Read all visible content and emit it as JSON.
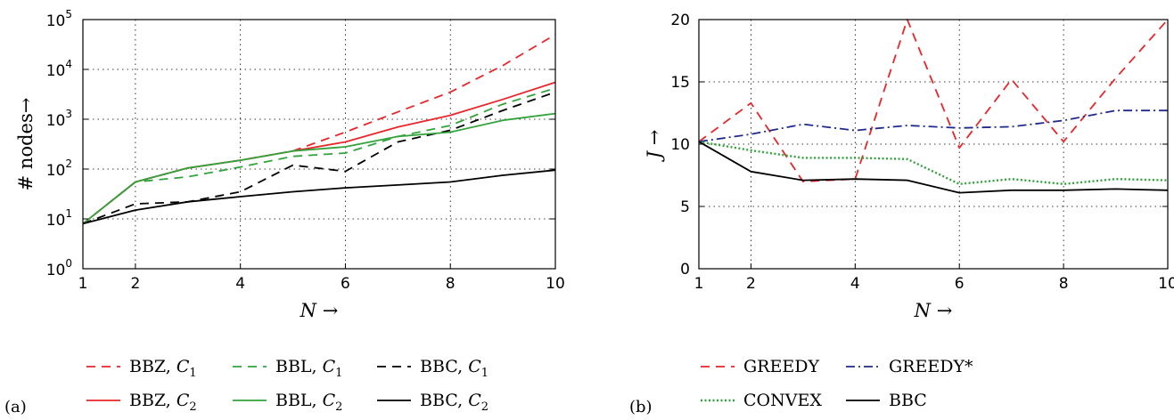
{
  "chart_data": [
    {
      "type": "line",
      "panel_label": "(a)",
      "xlabel": "N →",
      "ylabel": "# nodes→",
      "xlim": [
        1,
        10
      ],
      "ylim": [
        1,
        100000
      ],
      "yscale": "log",
      "grid": true,
      "x_ticks": [
        "1",
        "2",
        "4",
        "6",
        "8",
        "10"
      ],
      "y_ticks": [
        {
          "base": "10",
          "exp": "0"
        },
        {
          "base": "10",
          "exp": "1"
        },
        {
          "base": "10",
          "exp": "2"
        },
        {
          "base": "10",
          "exp": "3"
        },
        {
          "base": "10",
          "exp": "4"
        },
        {
          "base": "10",
          "exp": "5"
        }
      ],
      "legend_position": "bottom",
      "x": [
        1,
        2,
        3,
        4,
        5,
        6,
        7,
        8,
        9,
        10
      ],
      "series": [
        {
          "name": "BBZ, C1",
          "label_main": "BBZ, ",
          "label_var": "C",
          "label_sub": "1",
          "color": "#e8262b",
          "style": "dashed",
          "values": [
            8,
            55,
            105,
            150,
            230,
            550,
            1400,
            3500,
            12000,
            50000
          ]
        },
        {
          "name": "BBL, C1",
          "label_main": "BBL, ",
          "label_var": "C",
          "label_sub": "1",
          "color": "#32a33c",
          "style": "dashed",
          "values": [
            8,
            55,
            70,
            110,
            180,
            210,
            450,
            750,
            2000,
            4200
          ]
        },
        {
          "name": "BBC, C1",
          "label_main": "BBC, ",
          "label_var": "C",
          "label_sub": "1",
          "color": "#000000",
          "style": "dashed",
          "values": [
            8,
            20,
            22,
            35,
            120,
            90,
            350,
            600,
            1500,
            3500
          ]
        },
        {
          "name": "BBZ, C2",
          "label_main": "BBZ, ",
          "label_var": "C",
          "label_sub": "2",
          "color": "#e8262b",
          "style": "solid",
          "values": [
            8,
            55,
            105,
            150,
            230,
            350,
            700,
            1200,
            2500,
            5500
          ]
        },
        {
          "name": "BBL, C2",
          "label_main": "BBL, ",
          "label_var": "C",
          "label_sub": "2",
          "color": "#32a33c",
          "style": "solid",
          "values": [
            8,
            55,
            105,
            150,
            230,
            280,
            450,
            550,
            950,
            1300
          ]
        },
        {
          "name": "BBC, C2",
          "label_main": "BBC, ",
          "label_var": "C",
          "label_sub": "2",
          "color": "#000000",
          "style": "solid",
          "values": [
            8,
            15,
            22,
            28,
            35,
            42,
            48,
            55,
            75,
            95
          ]
        }
      ]
    },
    {
      "type": "line",
      "panel_label": "(b)",
      "xlabel": "N →",
      "ylabel": "J →",
      "xlim": [
        1,
        10
      ],
      "ylim": [
        0,
        20
      ],
      "grid": true,
      "x_ticks": [
        "1",
        "2",
        "4",
        "6",
        "8",
        "10"
      ],
      "y_ticks": [
        "0",
        "5",
        "10",
        "15",
        "20"
      ],
      "legend_position": "bottom",
      "x": [
        1,
        2,
        3,
        4,
        5,
        6,
        7,
        8,
        9,
        10
      ],
      "series": [
        {
          "name": "GREEDY",
          "color": "#e8262b",
          "style": "dashed",
          "values": [
            10.2,
            13.3,
            7.0,
            7.2,
            20.5,
            9.7,
            15.2,
            10.2,
            15.3,
            20.0
          ]
        },
        {
          "name": "GREEDY*",
          "color": "#1f2a8c",
          "style": "dashdot",
          "values": [
            10.2,
            10.8,
            11.6,
            11.1,
            11.5,
            11.3,
            11.4,
            11.9,
            12.7,
            12.7
          ]
        },
        {
          "name": "CONVEX",
          "color": "#32a33c",
          "style": "dotted",
          "values": [
            10.2,
            9.5,
            8.9,
            8.9,
            8.8,
            6.8,
            7.2,
            6.8,
            7.2,
            7.1
          ]
        },
        {
          "name": "BBC",
          "color": "#000000",
          "style": "solid",
          "values": [
            10.2,
            7.8,
            7.1,
            7.2,
            7.1,
            6.1,
            6.3,
            6.3,
            6.4,
            6.3
          ]
        }
      ]
    }
  ]
}
